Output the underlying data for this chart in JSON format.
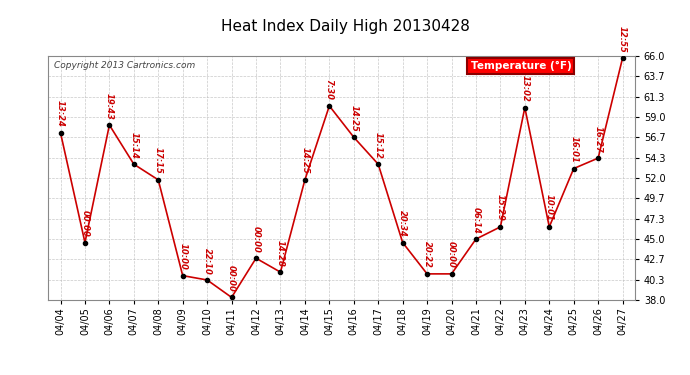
{
  "title": "Heat Index Daily High 20130428",
  "copyright": "Copyright 2013 Cartronics.com",
  "legend_label": "Temperature (°F)",
  "dates": [
    "04/04",
    "04/05",
    "04/06",
    "04/07",
    "04/08",
    "04/09",
    "04/10",
    "04/11",
    "04/12",
    "04/13",
    "04/14",
    "04/15",
    "04/16",
    "04/17",
    "04/18",
    "04/19",
    "04/20",
    "04/21",
    "04/22",
    "04/23",
    "04/24",
    "04/25",
    "04/26",
    "04/27"
  ],
  "values": [
    57.2,
    44.6,
    58.1,
    53.6,
    51.8,
    40.8,
    40.3,
    38.3,
    42.8,
    41.2,
    51.8,
    60.3,
    56.7,
    53.6,
    44.6,
    41.0,
    41.0,
    45.0,
    46.4,
    60.1,
    46.4,
    53.1,
    54.3,
    65.8
  ],
  "labels": [
    "13:24",
    "00:00",
    "19:43",
    "15:14",
    "17:15",
    "10:00",
    "22:10",
    "00:00",
    "00:00",
    "14:28",
    "14:25",
    "7:30",
    "14:25",
    "15:12",
    "20:34",
    "20:22",
    "00:00",
    "06:14",
    "15:29",
    "13:02",
    "10:01",
    "16:01",
    "16:27",
    "12:55"
  ],
  "line_color": "#cc0000",
  "marker_color": "#000000",
  "bg_color": "#ffffff",
  "grid_color": "#bbbbbb",
  "label_color": "#cc0000",
  "ylim_min": 38.0,
  "ylim_max": 66.0,
  "yticks": [
    38.0,
    40.3,
    42.7,
    45.0,
    47.3,
    49.7,
    52.0,
    54.3,
    56.7,
    59.0,
    61.3,
    63.7,
    66.0
  ],
  "fig_width": 6.9,
  "fig_height": 3.75,
  "dpi": 100
}
